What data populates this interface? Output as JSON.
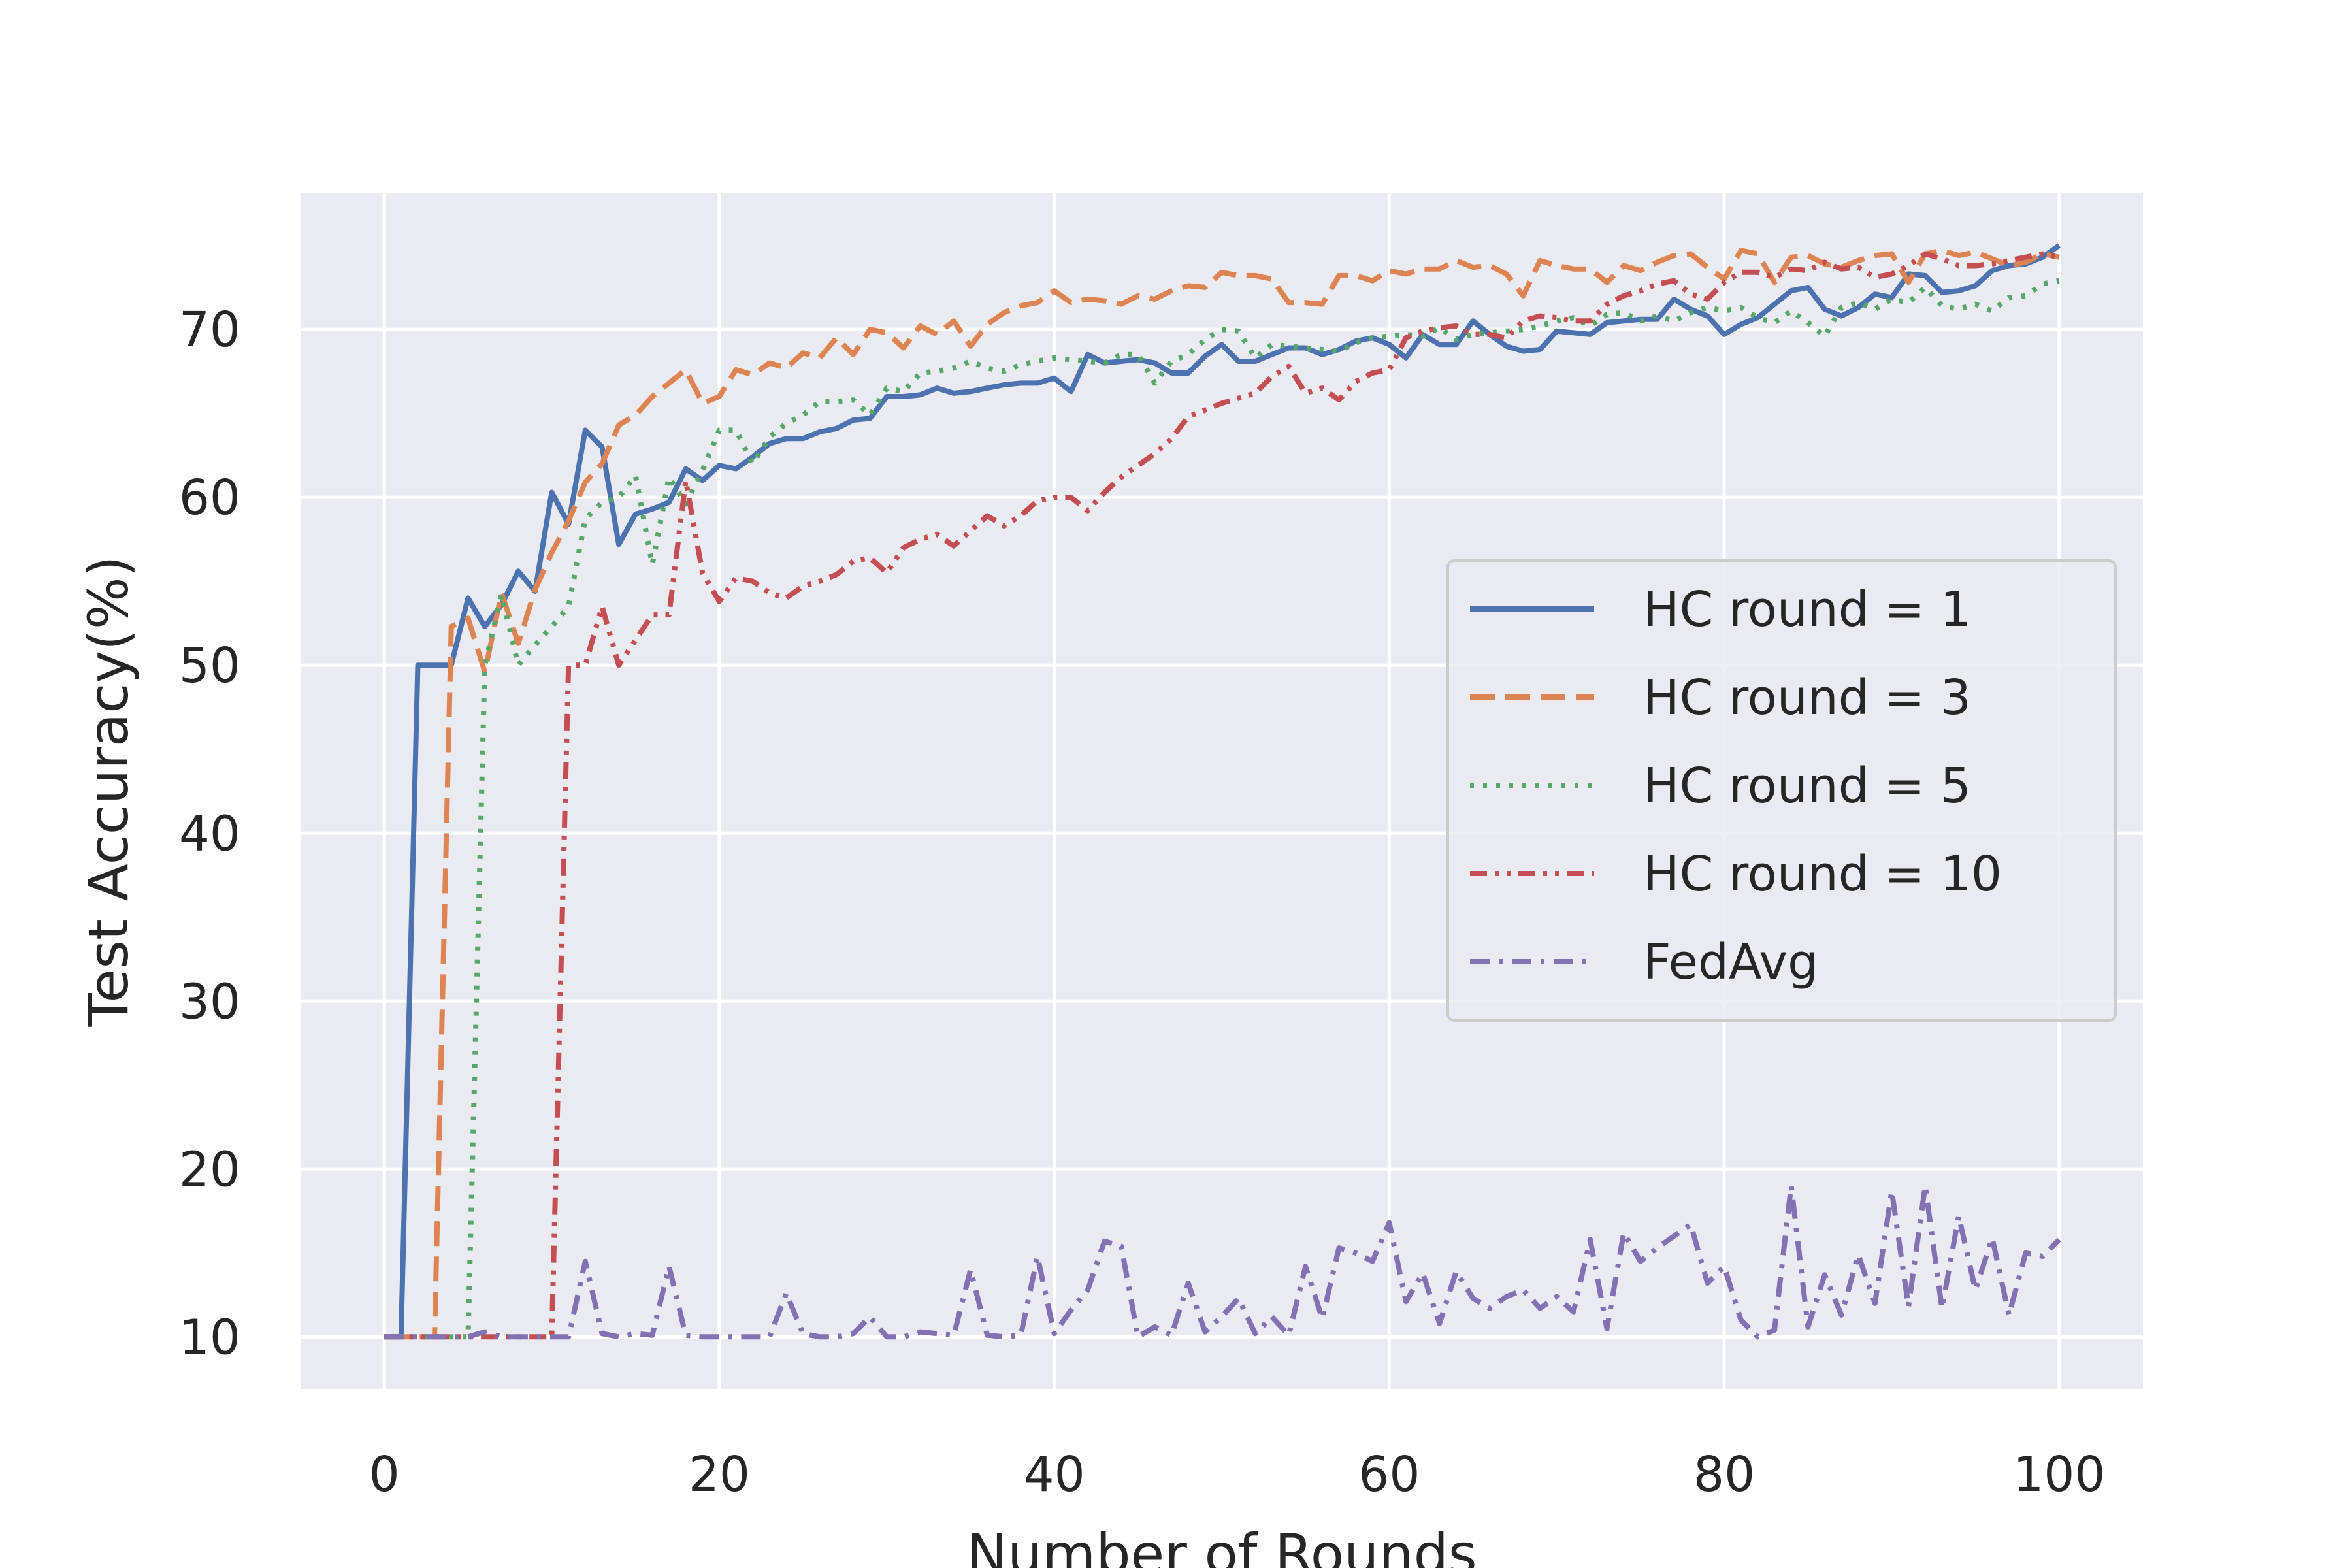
{
  "chart_data": {
    "type": "line",
    "title": "",
    "xlabel": "Number of Rounds",
    "ylabel": "Test Accuracy(%)",
    "xlim": [
      -5,
      105
    ],
    "ylim": [
      6.9,
      78.1
    ],
    "xticks": [
      0,
      20,
      40,
      60,
      80,
      100
    ],
    "yticks": [
      10,
      20,
      30,
      40,
      50,
      60,
      70
    ],
    "grid": true,
    "legend_position": "center-right",
    "x": [
      0,
      1,
      2,
      3,
      4,
      5,
      6,
      7,
      8,
      9,
      10,
      11,
      12,
      13,
      14,
      15,
      16,
      17,
      18,
      19,
      20,
      21,
      22,
      23,
      24,
      25,
      26,
      27,
      28,
      29,
      30,
      31,
      32,
      33,
      34,
      35,
      36,
      37,
      38,
      39,
      40,
      41,
      42,
      43,
      44,
      45,
      46,
      47,
      48,
      49,
      50,
      51,
      52,
      53,
      54,
      55,
      56,
      57,
      58,
      59,
      60,
      61,
      62,
      63,
      64,
      65,
      66,
      67,
      68,
      69,
      70,
      71,
      72,
      73,
      74,
      75,
      76,
      77,
      78,
      79,
      80,
      81,
      82,
      83,
      84,
      85,
      86,
      87,
      88,
      89,
      90,
      91,
      92,
      93,
      94,
      95,
      96,
      97,
      98,
      99,
      100
    ],
    "series": [
      {
        "name": "HC round = 1",
        "color": "#4c72b0",
        "dash": "solid",
        "values": [
          10,
          10,
          50,
          50,
          50,
          54,
          52.3,
          53.6,
          55.6,
          54.4,
          60.3,
          58.4,
          64,
          63,
          57.2,
          59,
          59.3,
          59.7,
          61.7,
          61,
          61.9,
          61.7,
          62.4,
          63.2,
          63.5,
          63.5,
          63.9,
          64.1,
          64.6,
          64.7,
          66,
          66,
          66.1,
          66.5,
          66.2,
          66.3,
          66.5,
          66.7,
          66.8,
          66.8,
          67.1,
          66.3,
          68.5,
          68,
          68.1,
          68.2,
          68,
          67.4,
          67.4,
          68.4,
          69.1,
          68.1,
          68.1,
          68.5,
          68.9,
          68.9,
          68.5,
          68.8,
          69.3,
          69.5,
          69.1,
          68.3,
          69.7,
          69.1,
          69.1,
          70.5,
          69.7,
          69,
          68.7,
          68.8,
          69.9,
          69.8,
          69.7,
          70.4,
          70.5,
          70.6,
          70.6,
          71.8,
          71.2,
          70.8,
          69.7,
          70.3,
          70.7,
          71.5,
          72.3,
          72.5,
          71.2,
          70.8,
          71.3,
          72.1,
          71.9,
          73.3,
          73.2,
          72.2,
          72.3,
          72.6,
          73.5,
          73.8,
          73.9,
          74.3,
          75
        ]
      },
      {
        "name": "HC round = 3",
        "color": "#dd8452",
        "dash": "dashed",
        "values": [
          10,
          10,
          10,
          10,
          52.3,
          52.8,
          49.6,
          54.3,
          51.3,
          54.5,
          56.7,
          58.6,
          60.9,
          62,
          64.3,
          64.9,
          66,
          66.8,
          67.6,
          65.6,
          66,
          67.6,
          67.3,
          68,
          67.7,
          68.6,
          68.3,
          69.5,
          68.5,
          70,
          69.8,
          68.9,
          70.2,
          69.7,
          70.5,
          69,
          70.3,
          71,
          71.4,
          71.6,
          72.3,
          71.6,
          71.8,
          71.7,
          71.5,
          72,
          71.8,
          72.3,
          72.6,
          72.5,
          73.4,
          73.2,
          73.2,
          73,
          71.6,
          71.6,
          71.5,
          73.2,
          73.2,
          72.9,
          73.5,
          73.3,
          73.6,
          73.6,
          74.1,
          73.7,
          73.8,
          73.3,
          72,
          74.1,
          73.8,
          73.6,
          73.6,
          72.8,
          73.8,
          73.5,
          74,
          74.4,
          74.5,
          73.7,
          73,
          74.7,
          74.5,
          72.8,
          74.3,
          74.4,
          73.9,
          73.7,
          74.1,
          74.4,
          74.5,
          72.8,
          74.5,
          74.7,
          74.4,
          74.6,
          74.2,
          73.8,
          74,
          74.5,
          74.3
        ]
      },
      {
        "name": "HC round = 5",
        "color": "#55a868",
        "dash": "dotted",
        "values": [
          10,
          10,
          10,
          10,
          10,
          10,
          50,
          54.2,
          50,
          51.2,
          52.3,
          53.5,
          58.7,
          59.7,
          60,
          61.3,
          56,
          61.2,
          59.6,
          61.6,
          64,
          64,
          62,
          63.6,
          64.4,
          64.9,
          65.7,
          65.7,
          65.8,
          64.9,
          66.5,
          66.3,
          67.4,
          67.5,
          67.7,
          68.1,
          67.7,
          67.5,
          67.9,
          68.1,
          68.3,
          68.2,
          68.1,
          68,
          68.5,
          68.5,
          66.8,
          68.1,
          68.5,
          69.4,
          70,
          69.9,
          68.3,
          69.1,
          69,
          68.9,
          68.8,
          68.7,
          69.2,
          69.5,
          69.6,
          69.7,
          69.6,
          70.1,
          69.4,
          69.7,
          69.8,
          69.9,
          70,
          70.2,
          70.5,
          70.7,
          70.2,
          70.9,
          71,
          70.5,
          70.8,
          70.5,
          71,
          71.3,
          71.1,
          71.3,
          70.7,
          70.4,
          71.1,
          70.4,
          69.6,
          71.3,
          71.6,
          71.2,
          71.8,
          71.6,
          72.5,
          71.4,
          71.2,
          71.5,
          71.1,
          71.9,
          72,
          72.7,
          72.9
        ]
      },
      {
        "name": "HC round = 10",
        "color": "#c44e52",
        "dash": "dashdotdot",
        "values": [
          10,
          10,
          10,
          10,
          10,
          10,
          10,
          10,
          10,
          10,
          10,
          50,
          50,
          53.5,
          50,
          51.5,
          53,
          53,
          61,
          55.5,
          53.8,
          55.2,
          55,
          54.3,
          54,
          54.7,
          55,
          55.4,
          56.2,
          56.4,
          55.5,
          57,
          57.5,
          57.8,
          57.1,
          58,
          58.9,
          58.3,
          58.9,
          59.8,
          60,
          60,
          59.2,
          60.3,
          61.2,
          61.9,
          62.6,
          63.5,
          64.8,
          65.2,
          65.6,
          65.9,
          66.2,
          67.2,
          67.8,
          66.2,
          66.5,
          65.8,
          66.9,
          67.4,
          67.6,
          69.5,
          69.9,
          70.1,
          70.2,
          69.7,
          69.7,
          69.5,
          70.5,
          70.8,
          70.7,
          70.5,
          70.5,
          71.5,
          72,
          72.3,
          72.7,
          72.9,
          72.1,
          71.8,
          72.8,
          73.4,
          73.4,
          73.1,
          73.6,
          73.5,
          74,
          73.6,
          73.7,
          73.1,
          73.3,
          73.8,
          74.5,
          74.2,
          73.8,
          73.8,
          73.9,
          74.1,
          74.3,
          74.5,
          74.3
        ]
      },
      {
        "name": "FedAvg",
        "color": "#8172b3",
        "dash": "dashdot",
        "values": [
          10,
          10,
          10,
          10,
          10,
          10,
          10.3,
          10,
          10,
          10,
          10,
          10,
          14.5,
          10.2,
          10,
          10.2,
          10.1,
          14.2,
          10.1,
          10,
          10,
          10,
          10,
          10,
          12.6,
          10.2,
          10,
          10,
          10.2,
          11.2,
          10,
          10,
          10.3,
          10.2,
          10.1,
          14,
          10.1,
          10,
          10.1,
          14.8,
          10.2,
          11.6,
          12.8,
          15.7,
          15.4,
          10,
          10.6,
          10.1,
          13.2,
          10.3,
          11.2,
          12.3,
          10.2,
          11.2,
          10.1,
          14.2,
          11.1,
          15.3,
          15,
          14.5,
          16.8,
          12.1,
          13.8,
          10.8,
          13.9,
          12.3,
          11.7,
          12.4,
          12.8,
          11.7,
          12.4,
          11.5,
          15.8,
          10.5,
          16.2,
          14.5,
          15.3,
          16,
          16.7,
          13.2,
          14.2,
          11,
          10,
          10.4,
          19,
          10.6,
          13.7,
          11.3,
          14.9,
          12,
          18.7,
          11.8,
          19,
          11.7,
          17.2,
          12.8,
          15.9,
          11.3,
          15,
          14.8,
          15.8
        ]
      }
    ]
  }
}
